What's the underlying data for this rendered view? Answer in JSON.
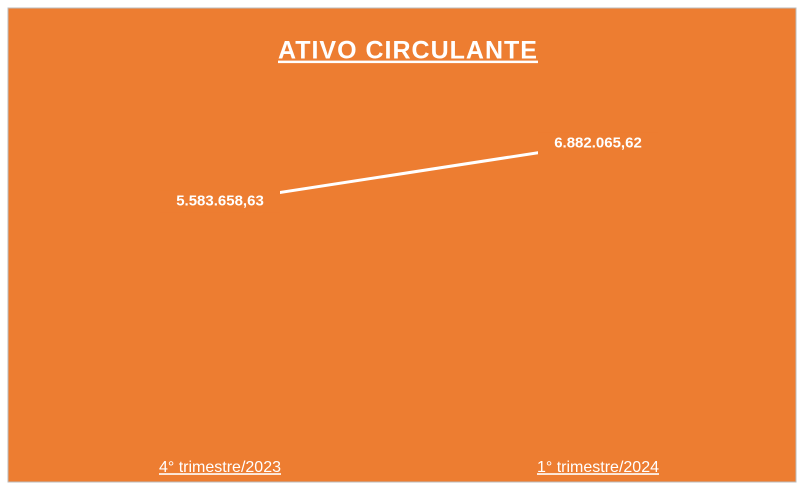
{
  "chart_data": {
    "type": "line",
    "title": "ATIVO CIRCULANTE",
    "categories": [
      "4° trimestre/2023",
      "1° trimestre/2024"
    ],
    "values": [
      5583658.63,
      6882065.62
    ],
    "value_labels": [
      "5.583.658,63",
      "6.882.065,62"
    ],
    "color": "#ffffff",
    "background": "#ed7d31",
    "ylim": [
      500000,
      7850000
    ],
    "grid": false
  }
}
